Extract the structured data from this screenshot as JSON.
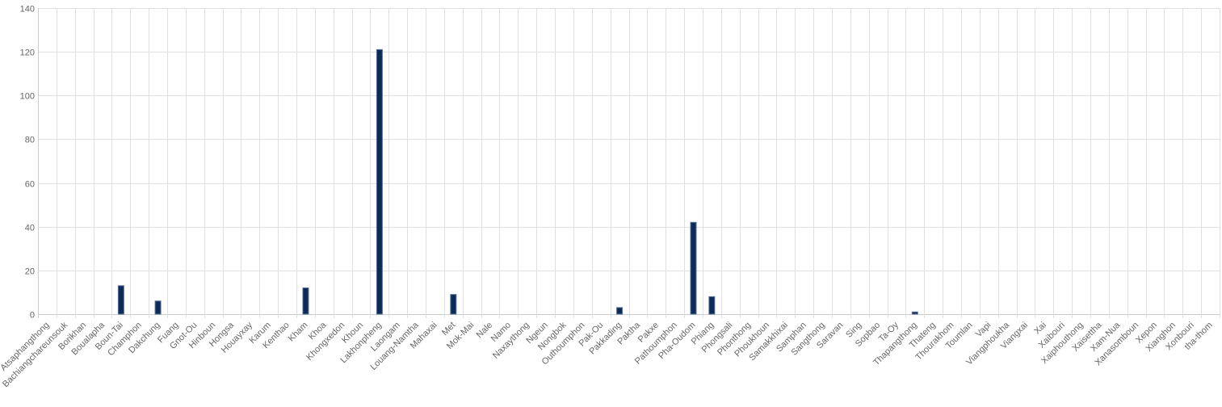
{
  "chart_data": {
    "type": "bar",
    "categories": [
      "Atsaphangthong",
      "Bachiangchareunsouk",
      "Borikhan",
      "Boualapha",
      "Boun-Tai",
      "Champhon",
      "Dakchung",
      "Fuang",
      "Gnot-Ou",
      "Hinboun",
      "Hongsa",
      "Houayxay",
      "Karum",
      "Kenthao",
      "Kham",
      "Khoa",
      "Khongxedon",
      "Khoun",
      "Lakhonpheng",
      "Laongam",
      "Louang-Namtha",
      "Mahaxai",
      "Met",
      "Mok-Mai",
      "Nale",
      "Namo",
      "Naxaythong",
      "Ngeun",
      "Nongbok",
      "Outhoumphon",
      "Pak-Ou",
      "Pakkading",
      "Paktha",
      "Pakxe",
      "Pathoumphon",
      "Pha-Oudom",
      "Phiang",
      "Phongsali",
      "Phonthong",
      "Phoukhoun",
      "Samakkhixai",
      "Samphan",
      "Sangthong",
      "Saravan",
      "Sing",
      "Sopbao",
      "Ta-Oy",
      "Thapangthong",
      "Thateng",
      "Thourakhom",
      "Toumlan",
      "Vapi",
      "Viangphoukha",
      "Viangxai",
      "Xai",
      "Xaibouri",
      "Xaiphouthong",
      "Xaisettha",
      "Xam-Nua",
      "Xanasomboun",
      "Xepon",
      "Xianghon",
      "Xonbouri",
      "tha-thom"
    ],
    "series": [
      {
        "values": [
          0,
          0,
          0,
          0,
          13,
          0,
          6,
          0,
          0,
          0,
          0,
          0,
          0,
          0,
          12,
          0,
          0,
          0,
          121,
          0,
          0,
          0,
          9,
          0,
          0,
          0,
          0,
          0,
          0,
          0,
          0,
          3,
          0,
          0,
          0,
          42,
          8,
          0,
          0,
          0,
          0,
          0,
          0,
          0,
          0,
          0,
          0,
          1,
          0,
          0,
          0,
          0,
          0,
          0,
          0,
          0,
          0,
          0,
          0,
          0,
          0,
          0,
          0,
          0
        ]
      }
    ],
    "y_ticks": [
      "0",
      "20",
      "40",
      "60",
      "80",
      "100",
      "120",
      "140"
    ],
    "ylim": [
      0,
      140
    ],
    "grid": true,
    "legend": "none",
    "bar_color": "#0d2b57"
  }
}
